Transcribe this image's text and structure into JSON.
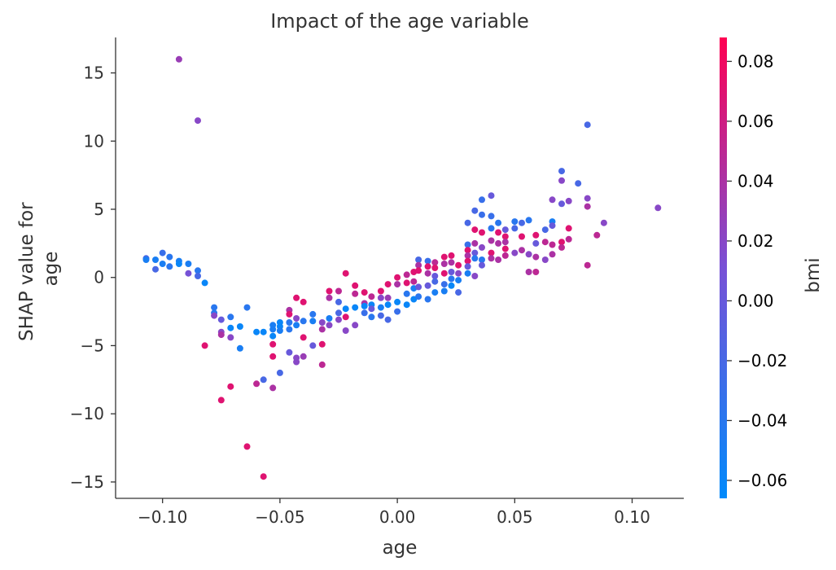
{
  "chart_data": {
    "type": "scatter",
    "title": "Impact of the age variable",
    "xlabel": "age",
    "ylabel": [
      "SHAP value for",
      "age"
    ],
    "colorbar_label": "bmi",
    "xlim": [
      -0.12,
      0.122
    ],
    "ylim": [
      -16.2,
      17.6
    ],
    "x_ticks": [
      -0.1,
      -0.05,
      0.0,
      0.05,
      0.1
    ],
    "x_tick_labels": [
      "−0.10",
      "−0.05",
      "0.00",
      "0.05",
      "0.10"
    ],
    "y_ticks": [
      15,
      10,
      5,
      0,
      -5,
      -10,
      -15
    ],
    "y_tick_labels": [
      "15",
      "10",
      "5",
      "0",
      "−5",
      "−10",
      "−15"
    ],
    "color_range": [
      -0.066,
      0.088
    ],
    "colorbar_ticks": [
      0.08,
      0.06,
      0.04,
      0.02,
      0.0,
      -0.02,
      -0.04,
      -0.06
    ],
    "colorbar_tick_labels": [
      "0.08",
      "0.06",
      "0.04",
      "0.02",
      "0.00",
      "−0.02",
      "−0.04",
      "−0.06"
    ],
    "colormap": [
      "#008afb",
      "#7851d6",
      "#ff0052"
    ],
    "points": [
      [
        -0.107,
        1.4,
        -0.02
      ],
      [
        -0.107,
        1.3,
        -0.05
      ],
      [
        -0.103,
        0.6,
        -0.02
      ],
      [
        -0.103,
        1.3,
        -0.05
      ],
      [
        -0.1,
        1.8,
        -0.03
      ],
      [
        -0.1,
        1.0,
        -0.05
      ],
      [
        -0.097,
        1.5,
        -0.04
      ],
      [
        -0.097,
        0.8,
        -0.04
      ],
      [
        -0.093,
        16.0,
        0.03
      ],
      [
        -0.093,
        1.2,
        -0.05
      ],
      [
        -0.093,
        1.0,
        -0.06
      ],
      [
        -0.089,
        1.0,
        -0.05
      ],
      [
        -0.089,
        0.3,
        0.01
      ],
      [
        -0.085,
        11.5,
        0.02
      ],
      [
        -0.085,
        0.5,
        -0.04
      ],
      [
        -0.085,
        0.1,
        -0.02
      ],
      [
        -0.082,
        -0.4,
        -0.06
      ],
      [
        -0.082,
        -5.0,
        0.07
      ],
      [
        -0.078,
        -2.2,
        -0.04
      ],
      [
        -0.078,
        -2.6,
        -0.04
      ],
      [
        -0.078,
        -2.8,
        0.02
      ],
      [
        -0.075,
        -3.1,
        0.0
      ],
      [
        -0.075,
        -4.0,
        0.02
      ],
      [
        -0.075,
        -4.2,
        0.04
      ],
      [
        -0.075,
        -9.0,
        0.07
      ],
      [
        -0.071,
        -2.9,
        -0.04
      ],
      [
        -0.071,
        -3.7,
        -0.06
      ],
      [
        -0.071,
        -4.4,
        0.02
      ],
      [
        -0.071,
        -8.0,
        0.07
      ],
      [
        -0.067,
        -3.6,
        -0.06
      ],
      [
        -0.067,
        -5.2,
        -0.05
      ],
      [
        -0.064,
        -2.2,
        -0.04
      ],
      [
        -0.064,
        -12.4,
        0.07
      ],
      [
        -0.06,
        -4.0,
        -0.06
      ],
      [
        -0.06,
        -7.8,
        0.05
      ],
      [
        -0.057,
        -4.0,
        -0.06
      ],
      [
        -0.057,
        -7.5,
        -0.02
      ],
      [
        -0.057,
        -14.6,
        0.07
      ],
      [
        -0.053,
        -3.5,
        -0.05
      ],
      [
        -0.053,
        -3.8,
        -0.05
      ],
      [
        -0.053,
        -4.3,
        -0.06
      ],
      [
        -0.053,
        -4.9,
        0.07
      ],
      [
        -0.053,
        -5.8,
        0.07
      ],
      [
        -0.053,
        -8.1,
        0.04
      ],
      [
        -0.05,
        -3.3,
        -0.06
      ],
      [
        -0.05,
        -3.6,
        -0.06
      ],
      [
        -0.05,
        -3.9,
        -0.05
      ],
      [
        -0.05,
        -7.0,
        -0.02
      ],
      [
        -0.046,
        -2.4,
        0.04
      ],
      [
        -0.046,
        -2.7,
        0.07
      ],
      [
        -0.046,
        -3.3,
        -0.04
      ],
      [
        -0.046,
        -3.8,
        -0.04
      ],
      [
        -0.046,
        -5.5,
        0.0
      ],
      [
        -0.043,
        -1.5,
        0.07
      ],
      [
        -0.043,
        -3.0,
        0.02
      ],
      [
        -0.043,
        -3.5,
        -0.05
      ],
      [
        -0.043,
        -5.9,
        0.02
      ],
      [
        -0.043,
        -6.2,
        0.02
      ],
      [
        -0.04,
        -1.8,
        0.07
      ],
      [
        -0.04,
        -3.2,
        -0.04
      ],
      [
        -0.04,
        -4.4,
        0.07
      ],
      [
        -0.04,
        -5.8,
        0.03
      ],
      [
        -0.036,
        -2.7,
        -0.04
      ],
      [
        -0.036,
        -3.2,
        -0.05
      ],
      [
        -0.036,
        -5.0,
        0.0
      ],
      [
        -0.032,
        -3.3,
        0.02
      ],
      [
        -0.032,
        -3.8,
        0.04
      ],
      [
        -0.032,
        -4.9,
        0.07
      ],
      [
        -0.032,
        -6.4,
        0.05
      ],
      [
        -0.029,
        -1.0,
        0.07
      ],
      [
        -0.029,
        -1.5,
        0.04
      ],
      [
        -0.029,
        -3.0,
        -0.05
      ],
      [
        -0.029,
        -3.5,
        0.02
      ],
      [
        -0.025,
        -1.0,
        0.05
      ],
      [
        -0.025,
        -1.8,
        -0.02
      ],
      [
        -0.025,
        -2.6,
        -0.02
      ],
      [
        -0.025,
        -3.1,
        0.02
      ],
      [
        -0.022,
        0.3,
        0.07
      ],
      [
        -0.022,
        -2.3,
        -0.06
      ],
      [
        -0.022,
        -2.9,
        0.07
      ],
      [
        -0.022,
        -3.9,
        0.02
      ],
      [
        -0.018,
        -0.6,
        0.07
      ],
      [
        -0.018,
        -1.2,
        0.05
      ],
      [
        -0.018,
        -2.2,
        -0.06
      ],
      [
        -0.018,
        -3.5,
        0.02
      ],
      [
        -0.014,
        -1.1,
        0.07
      ],
      [
        -0.014,
        -1.9,
        0.04
      ],
      [
        -0.014,
        -2.1,
        -0.06
      ],
      [
        -0.014,
        -2.6,
        -0.03
      ],
      [
        -0.011,
        -1.4,
        0.05
      ],
      [
        -0.011,
        -2.0,
        -0.06
      ],
      [
        -0.011,
        -2.3,
        0.0
      ],
      [
        -0.011,
        -2.9,
        -0.04
      ],
      [
        -0.007,
        -1.0,
        0.07
      ],
      [
        -0.007,
        -1.5,
        0.02
      ],
      [
        -0.007,
        -2.2,
        -0.05
      ],
      [
        -0.007,
        -2.8,
        -0.02
      ],
      [
        -0.004,
        -0.5,
        0.07
      ],
      [
        -0.004,
        -1.5,
        0.03
      ],
      [
        -0.004,
        -2.0,
        -0.06
      ],
      [
        -0.004,
        -3.1,
        -0.02
      ],
      [
        0.0,
        0.0,
        0.07
      ],
      [
        0.0,
        -0.5,
        0.04
      ],
      [
        0.0,
        -1.8,
        -0.06
      ],
      [
        0.0,
        -2.5,
        -0.03
      ],
      [
        0.004,
        0.2,
        0.05
      ],
      [
        0.004,
        -0.4,
        0.07
      ],
      [
        0.004,
        -1.2,
        -0.04
      ],
      [
        0.004,
        -2.0,
        -0.06
      ],
      [
        0.007,
        0.4,
        0.07
      ],
      [
        0.007,
        -0.3,
        0.05
      ],
      [
        0.007,
        -0.8,
        -0.05
      ],
      [
        0.007,
        -1.6,
        -0.06
      ],
      [
        0.009,
        1.3,
        -0.02
      ],
      [
        0.009,
        0.9,
        0.04
      ],
      [
        0.009,
        0.5,
        0.07
      ],
      [
        0.009,
        -0.7,
        0.0
      ],
      [
        0.009,
        -1.4,
        -0.04
      ],
      [
        0.013,
        1.2,
        -0.03
      ],
      [
        0.013,
        0.8,
        0.07
      ],
      [
        0.013,
        0.3,
        0.04
      ],
      [
        0.013,
        -0.6,
        0.0
      ],
      [
        0.013,
        -1.6,
        -0.04
      ],
      [
        0.016,
        1.1,
        0.05
      ],
      [
        0.016,
        0.7,
        0.07
      ],
      [
        0.016,
        0.1,
        0.0
      ],
      [
        0.016,
        -0.3,
        -0.02
      ],
      [
        0.016,
        -1.1,
        -0.05
      ],
      [
        0.02,
        1.5,
        0.07
      ],
      [
        0.02,
        1.0,
        0.04
      ],
      [
        0.02,
        0.3,
        0.07
      ],
      [
        0.02,
        -0.5,
        -0.03
      ],
      [
        0.02,
        -1.0,
        -0.05
      ],
      [
        0.023,
        1.6,
        0.07
      ],
      [
        0.023,
        1.1,
        0.04
      ],
      [
        0.023,
        0.4,
        0.0
      ],
      [
        0.023,
        -0.1,
        -0.04
      ],
      [
        0.023,
        -0.6,
        -0.06
      ],
      [
        0.026,
        0.9,
        0.07
      ],
      [
        0.026,
        0.3,
        0.02
      ],
      [
        0.026,
        -0.2,
        -0.05
      ],
      [
        0.026,
        -1.1,
        -0.02
      ],
      [
        0.03,
        4.0,
        -0.02
      ],
      [
        0.03,
        2.4,
        -0.03
      ],
      [
        0.03,
        2.0,
        0.07
      ],
      [
        0.03,
        1.6,
        0.04
      ],
      [
        0.03,
        1.2,
        0.07
      ],
      [
        0.03,
        0.8,
        0.0
      ],
      [
        0.03,
        0.3,
        -0.05
      ],
      [
        0.033,
        4.9,
        -0.02
      ],
      [
        0.033,
        3.5,
        0.07
      ],
      [
        0.033,
        2.5,
        0.04
      ],
      [
        0.033,
        1.8,
        0.0
      ],
      [
        0.033,
        1.4,
        -0.04
      ],
      [
        0.033,
        0.1,
        0.02
      ],
      [
        0.036,
        5.7,
        -0.03
      ],
      [
        0.036,
        4.6,
        -0.03
      ],
      [
        0.036,
        3.3,
        0.07
      ],
      [
        0.036,
        2.2,
        0.02
      ],
      [
        0.036,
        1.3,
        -0.04
      ],
      [
        0.036,
        0.9,
        0.0
      ],
      [
        0.04,
        6.0,
        0.0
      ],
      [
        0.04,
        4.5,
        -0.03
      ],
      [
        0.04,
        3.6,
        -0.04
      ],
      [
        0.04,
        2.7,
        0.04
      ],
      [
        0.04,
        1.8,
        0.07
      ],
      [
        0.04,
        1.4,
        0.04
      ],
      [
        0.043,
        4.0,
        -0.04
      ],
      [
        0.043,
        3.3,
        0.07
      ],
      [
        0.043,
        2.5,
        0.04
      ],
      [
        0.043,
        1.3,
        0.04
      ],
      [
        0.046,
        3.5,
        0.0
      ],
      [
        0.046,
        3.0,
        0.07
      ],
      [
        0.046,
        2.6,
        0.04
      ],
      [
        0.046,
        2.1,
        0.07
      ],
      [
        0.046,
        1.6,
        0.05
      ],
      [
        0.05,
        4.1,
        -0.04
      ],
      [
        0.05,
        3.6,
        -0.02
      ],
      [
        0.05,
        1.8,
        0.02
      ],
      [
        0.053,
        4.0,
        -0.02
      ],
      [
        0.053,
        3.0,
        0.07
      ],
      [
        0.053,
        2.0,
        0.04
      ],
      [
        0.056,
        4.2,
        -0.04
      ],
      [
        0.056,
        1.7,
        0.02
      ],
      [
        0.056,
        0.4,
        0.04
      ],
      [
        0.059,
        3.1,
        0.07
      ],
      [
        0.059,
        2.5,
        0.0
      ],
      [
        0.059,
        1.5,
        0.04
      ],
      [
        0.059,
        0.4,
        0.05
      ],
      [
        0.063,
        3.5,
        -0.02
      ],
      [
        0.063,
        2.6,
        0.05
      ],
      [
        0.063,
        1.3,
        0.02
      ],
      [
        0.066,
        5.7,
        0.02
      ],
      [
        0.066,
        4.1,
        -0.05
      ],
      [
        0.066,
        3.8,
        0.0
      ],
      [
        0.066,
        2.4,
        0.05
      ],
      [
        0.066,
        1.7,
        0.04
      ],
      [
        0.07,
        7.8,
        -0.02
      ],
      [
        0.07,
        7.1,
        0.02
      ],
      [
        0.07,
        5.4,
        0.0
      ],
      [
        0.07,
        2.6,
        0.07
      ],
      [
        0.07,
        2.2,
        0.05
      ],
      [
        0.073,
        5.6,
        0.02
      ],
      [
        0.073,
        3.6,
        0.07
      ],
      [
        0.073,
        2.8,
        0.05
      ],
      [
        0.077,
        6.9,
        -0.02
      ],
      [
        0.081,
        11.2,
        -0.02
      ],
      [
        0.081,
        5.8,
        0.02
      ],
      [
        0.081,
        5.2,
        0.04
      ],
      [
        0.081,
        0.9,
        0.05
      ],
      [
        0.085,
        3.1,
        0.05
      ],
      [
        0.088,
        4.0,
        0.02
      ],
      [
        0.111,
        5.1,
        0.02
      ]
    ]
  }
}
